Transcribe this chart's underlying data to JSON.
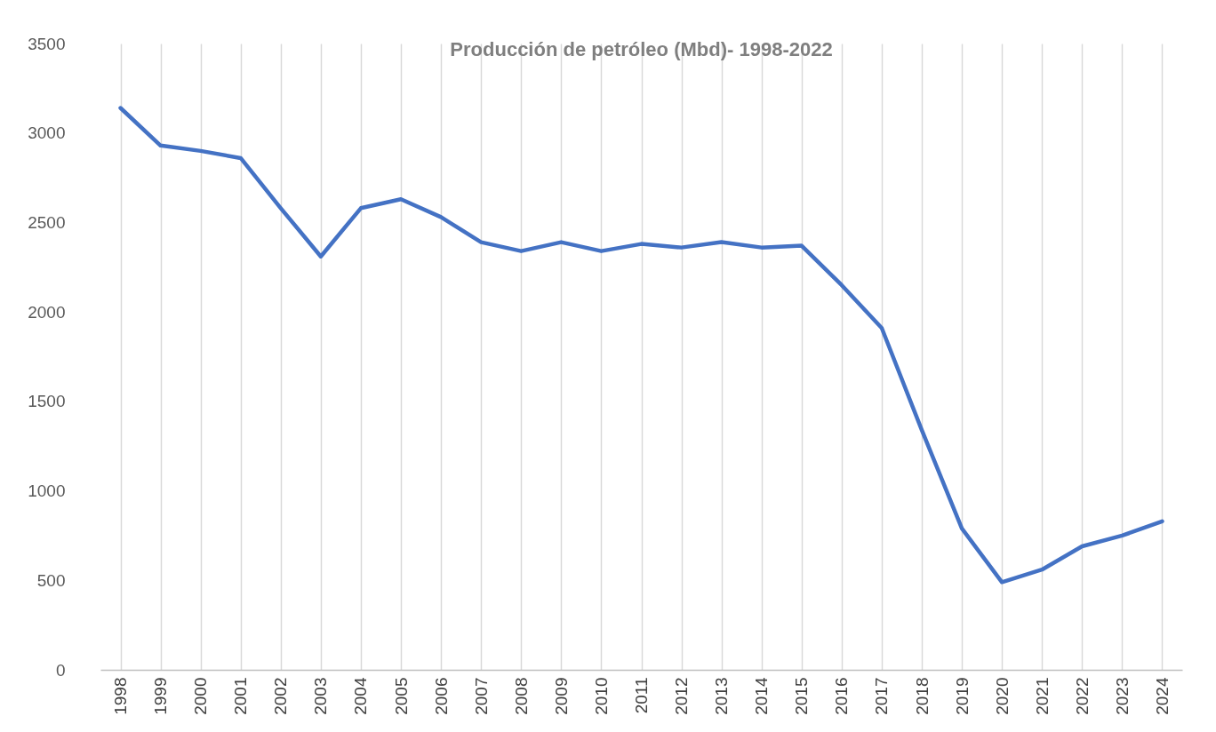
{
  "chart_data": {
    "type": "line",
    "title": "Producción  de petróleo (Mbd)- 1998-2022",
    "categories": [
      "1998",
      "1999",
      "2000",
      "2001",
      "2002",
      "2003",
      "2004",
      "2005",
      "2006",
      "2007",
      "2008",
      "2009",
      "2010",
      "2011",
      "2012",
      "2013",
      "2014",
      "2015",
      "2016",
      "2017",
      "2018",
      "2019",
      "2020",
      "2021",
      "2022",
      "2023",
      "2024"
    ],
    "series": [
      {
        "color": "#4472c4",
        "values": [
          3140,
          2930,
          2900,
          2860,
          2580,
          2310,
          2580,
          2630,
          2530,
          2390,
          2340,
          2390,
          2340,
          2380,
          2360,
          2390,
          2360,
          2370,
          2150,
          1910,
          1340,
          790,
          490,
          560,
          690,
          750,
          830
        ]
      }
    ],
    "ylim": [
      0,
      3500
    ],
    "yticks": [
      0,
      500,
      1000,
      1500,
      2000,
      2500,
      3000,
      3500
    ],
    "grid": "x",
    "legend": false,
    "marker": "none",
    "line_style": "solid"
  }
}
